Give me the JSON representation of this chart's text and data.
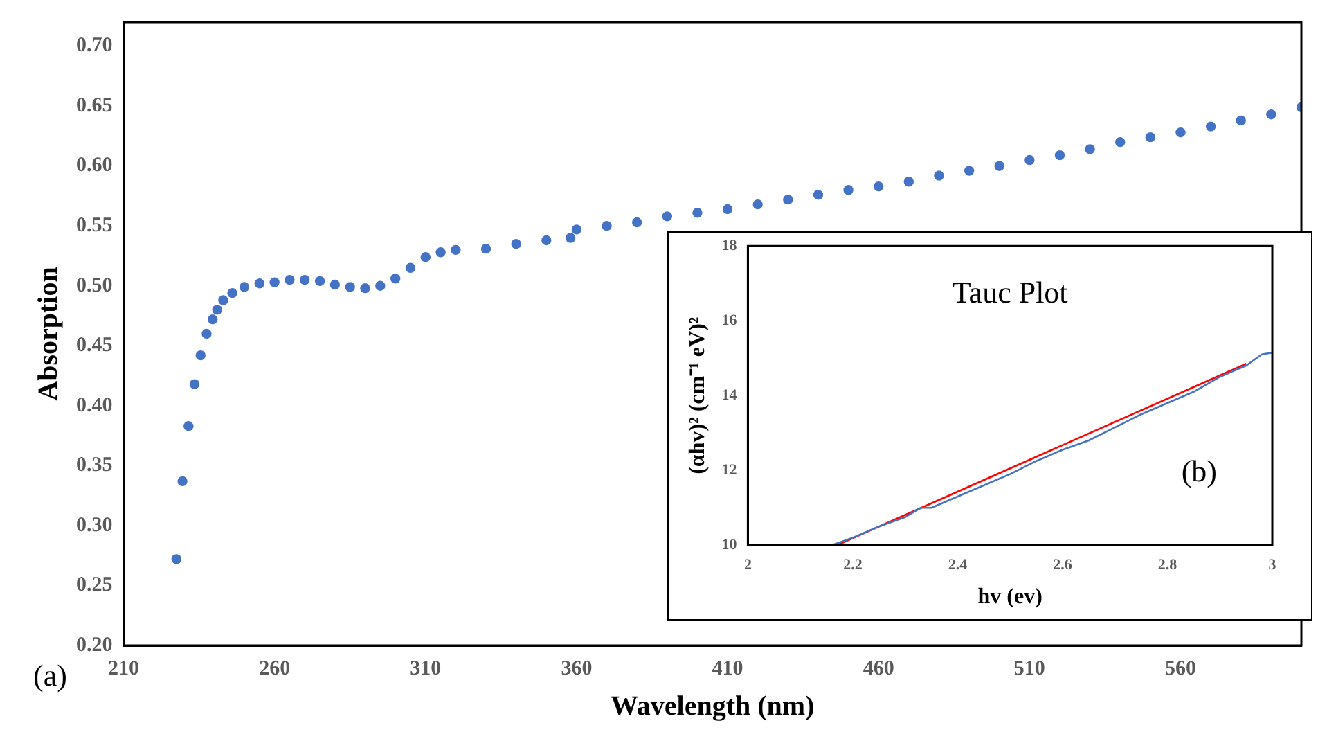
{
  "chart_data": [
    {
      "type": "scatter",
      "xlabel": "Wavelength (nm)",
      "ylabel": "Absorption",
      "annotations": [
        "(a)"
      ],
      "marker": "circle",
      "legend": false,
      "xlim": [
        210,
        600
      ],
      "xticks": [
        210,
        260,
        310,
        360,
        410,
        460,
        510,
        560
      ],
      "ylim": [
        0.2,
        0.72
      ],
      "yticks": [
        {
          "value": 0.2,
          "label": "0.20"
        },
        {
          "value": 0.25,
          "label": "0.25"
        },
        {
          "value": 0.3,
          "label": "0.30"
        },
        {
          "value": 0.35,
          "label": "0.35"
        },
        {
          "value": 0.4,
          "label": "0.40"
        },
        {
          "value": 0.45,
          "label": "0.45"
        },
        {
          "value": 0.5,
          "label": "0.50"
        },
        {
          "value": 0.55,
          "label": "0.55"
        },
        {
          "value": 0.6,
          "label": "0.60"
        },
        {
          "value": 0.65,
          "label": "0.65"
        },
        {
          "value": 0.7,
          "label": "0.70"
        }
      ],
      "series": [
        {
          "color": "#4472c4",
          "x": [
            227.5,
            229.5,
            231.5,
            233.5,
            235.5,
            237.5,
            239.5,
            241,
            243,
            246,
            250,
            255,
            260,
            265,
            270,
            275,
            280,
            285,
            290,
            295,
            300,
            305,
            310,
            315,
            320,
            330,
            340,
            350,
            358,
            360,
            370,
            380,
            390,
            400,
            410,
            420,
            430,
            440,
            450,
            460,
            470,
            480,
            490,
            500,
            510,
            520,
            530,
            540,
            550,
            560,
            570,
            580,
            590,
            600
          ],
          "values": [
            0.272,
            0.337,
            0.383,
            0.418,
            0.442,
            0.46,
            0.472,
            0.48,
            0.488,
            0.494,
            0.499,
            0.502,
            0.503,
            0.505,
            0.505,
            0.504,
            0.501,
            0.499,
            0.498,
            0.5,
            0.506,
            0.515,
            0.524,
            0.528,
            0.53,
            0.531,
            0.535,
            0.538,
            0.54,
            0.547,
            0.55,
            0.553,
            0.558,
            0.561,
            0.564,
            0.568,
            0.572,
            0.576,
            0.58,
            0.583,
            0.587,
            0.592,
            0.596,
            0.6,
            0.605,
            0.609,
            0.614,
            0.62,
            0.624,
            0.628,
            0.633,
            0.638,
            0.643,
            0.649
          ]
        }
      ]
    },
    {
      "type": "line",
      "title": "Tauc Plot",
      "xlabel": "hv (ev)",
      "ylabel": "(αhv)² (cm⁻¹ eV)²",
      "annotations": [
        "(b)"
      ],
      "marker": "none",
      "legend": false,
      "xlim": [
        2,
        3
      ],
      "xticks": [
        2,
        2.2,
        2.4,
        2.6,
        2.8,
        3
      ],
      "ylim": [
        10,
        18
      ],
      "yticks": [
        10,
        12,
        14,
        16,
        18
      ],
      "series": [
        {
          "color": "#4472c4",
          "x": [
            2.16,
            2.2,
            2.25,
            2.3,
            2.33,
            2.35,
            2.4,
            2.45,
            2.5,
            2.55,
            2.6,
            2.65,
            2.7,
            2.75,
            2.8,
            2.85,
            2.9,
            2.95,
            2.98,
            3.0
          ],
          "values": [
            10.0,
            10.2,
            10.5,
            10.75,
            11.0,
            11.0,
            11.3,
            11.6,
            11.9,
            12.25,
            12.55,
            12.8,
            13.15,
            13.5,
            13.8,
            14.1,
            14.5,
            14.8,
            15.1,
            15.15
          ]
        },
        {
          "color": "#ff0000",
          "x": [
            2.17,
            2.95
          ],
          "values": [
            10.0,
            14.85
          ]
        }
      ]
    }
  ]
}
